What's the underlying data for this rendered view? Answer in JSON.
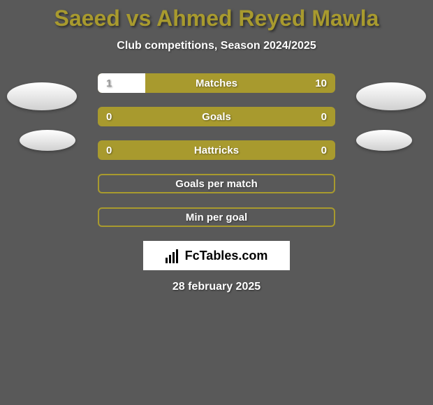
{
  "title": "Saeed vs Ahmed Reyed Mawla",
  "subtitle": "Club competitions, Season 2024/2025",
  "stats": [
    {
      "label": "Matches",
      "left_value": "1",
      "right_value": "10",
      "fill_percent": 20,
      "bordered": false
    },
    {
      "label": "Goals",
      "left_value": "0",
      "right_value": "0",
      "fill_percent": 0,
      "bordered": false
    },
    {
      "label": "Hattricks",
      "left_value": "0",
      "right_value": "0",
      "fill_percent": 0,
      "bordered": false
    },
    {
      "label": "Goals per match",
      "left_value": "",
      "right_value": "",
      "fill_percent": 0,
      "bordered": true
    },
    {
      "label": "Min per goal",
      "left_value": "",
      "right_value": "",
      "fill_percent": 0,
      "bordered": true
    }
  ],
  "logo_text": "FcTables.com",
  "date_text": "28 february 2025",
  "colors": {
    "background": "#595959",
    "accent": "#a89a2e",
    "text_white": "#ffffff",
    "logo_bg": "#ffffff",
    "logo_text": "#000000"
  },
  "side_ellipses": {
    "left_count": 2,
    "right_count": 2
  }
}
